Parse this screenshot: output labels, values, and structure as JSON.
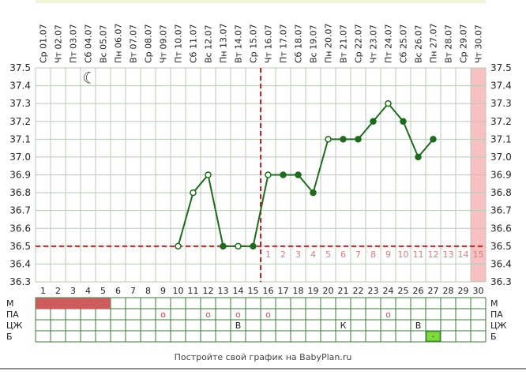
{
  "footer_text": "Постройте свой график на BabyPlan.ru",
  "chart_data": {
    "type": "line",
    "dates": [
      "Ср 01.07",
      "Чт 02.07",
      "Пт 03.07",
      "Сб 04.07",
      "Вс 05.07",
      "Пн 06.07",
      "Вт 07.07",
      "Ср 08.07",
      "Чт 09.07",
      "Пт 10.07",
      "Сб 11.07",
      "Вс 12.07",
      "Пн 13.07",
      "Вт 14.07",
      "Ср 15.07",
      "Чт 16.07",
      "Пт 17.07",
      "Сб 18.07",
      "Вс 19.07",
      "Пн 20.07",
      "Вт 21.07",
      "Ср 22.07",
      "Чт 23.07",
      "Пт 24.07",
      "Сб 25.07",
      "Вс 26.07",
      "Пн 27.07",
      "Вт 28.07",
      "Ср 29.07",
      "Чт 30.07"
    ],
    "days": [
      1,
      2,
      3,
      4,
      5,
      6,
      7,
      8,
      9,
      10,
      11,
      12,
      13,
      14,
      15,
      16,
      17,
      18,
      19,
      20,
      21,
      22,
      23,
      24,
      25,
      26,
      27,
      28,
      29,
      30
    ],
    "y_ticks": [
      "36.3",
      "36.4",
      "36.5",
      "36.6",
      "36.7",
      "36.8",
      "36.9",
      "37.0",
      "37.1",
      "37.2",
      "37.3",
      "37.4",
      "37.5"
    ],
    "ylim": [
      36.3,
      37.5
    ],
    "series": [
      {
        "x": [
          10,
          11,
          12,
          13,
          14,
          15,
          16,
          17,
          18,
          19,
          20,
          21,
          22,
          23,
          24,
          25,
          26,
          27
        ],
        "y": [
          36.5,
          36.8,
          36.9,
          36.5,
          36.5,
          36.5,
          36.9,
          36.9,
          36.9,
          36.8,
          37.1,
          37.1,
          37.1,
          37.2,
          37.3,
          37.2,
          37.0,
          37.1
        ],
        "marker": [
          "open",
          "open",
          "open",
          "filled",
          "open",
          "filled",
          "open",
          "filled",
          "filled",
          "filled",
          "open",
          "filled",
          "filled",
          "filled",
          "open",
          "filled",
          "filled",
          "filled"
        ]
      }
    ],
    "coverline": 36.5,
    "ovulation_day": 15,
    "luteal_labels": [
      "1",
      "2",
      "3",
      "4",
      "5",
      "6",
      "7",
      "8",
      "9",
      "10",
      "11",
      "12",
      "13",
      "14",
      "15"
    ],
    "luteal_start_day": 16,
    "highlight_day": 30,
    "moon_day": 4,
    "moon_symbol": "☾",
    "rows": [
      {
        "label": "М",
        "marks": [
          {
            "day": 1,
            "span": 5,
            "type": "bar"
          }
        ]
      },
      {
        "label": "ПА",
        "marks": [
          {
            "day": 9,
            "type": "text",
            "text": "o"
          },
          {
            "day": 12,
            "type": "text",
            "text": "o"
          },
          {
            "day": 14,
            "type": "text",
            "text": "o"
          },
          {
            "day": 16,
            "type": "text",
            "text": "o"
          },
          {
            "day": 24,
            "type": "text",
            "text": "o"
          }
        ]
      },
      {
        "label": "ЦЖ",
        "marks": [
          {
            "day": 14,
            "type": "text",
            "text": "В"
          },
          {
            "day": 21,
            "type": "text",
            "text": "К"
          },
          {
            "day": 26,
            "type": "text",
            "text": "В"
          }
        ]
      },
      {
        "label": "Б",
        "marks": [
          {
            "day": 27,
            "type": "box",
            "text": "-"
          }
        ]
      }
    ],
    "colors": {
      "line": "#1e6b1e",
      "grid": "#b8c8b8",
      "coverline": "#cc1f1f",
      "luteal_text": "#d98080",
      "highlight": "#f7c1c1",
      "period": "#cd5c5c",
      "test_box": "#7fdc3a",
      "row_mark": "#cd4a4a"
    }
  }
}
